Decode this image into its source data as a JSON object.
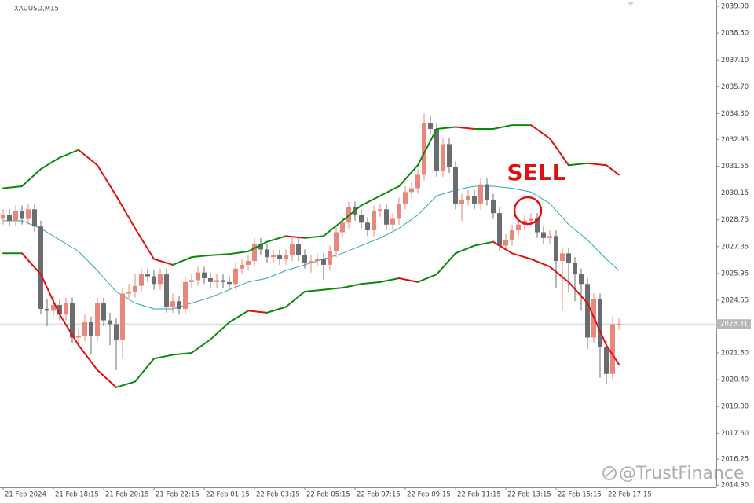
{
  "chart_data": {
    "type": "candlestick",
    "title": "XAUUSD,M15",
    "categories": [
      "21 Feb 2024",
      null,
      null,
      null,
      null,
      null,
      null,
      null,
      "21 Feb 18:15",
      null,
      null,
      null,
      null,
      null,
      null,
      null,
      "21 Feb 20:15",
      null,
      null,
      null,
      null,
      null,
      null,
      null,
      "21 Feb 22:15",
      null,
      null,
      null,
      null,
      null,
      null,
      null,
      "22 Feb 01:15",
      null,
      null,
      null,
      null,
      null,
      null,
      null,
      "22 Feb 03:15",
      null,
      null,
      null,
      null,
      null,
      null,
      null,
      "22 Feb 05:15",
      null,
      null,
      null,
      null,
      null,
      null,
      null,
      "22 Feb 07:15",
      null,
      null,
      null,
      null,
      null,
      null,
      null,
      "22 Feb 09:15",
      null,
      null,
      null,
      null,
      null,
      null,
      null,
      "22 Feb 11:15",
      null,
      null,
      null,
      null,
      null,
      null,
      null,
      "22 Feb 13:15",
      null,
      null,
      null,
      null,
      null,
      null,
      null,
      "22 Feb 15:15",
      null,
      null,
      null,
      null,
      null,
      null,
      null,
      "22 Feb 17:15",
      null,
      null
    ],
    "open": [
      2028.8,
      2029.0,
      2028.7,
      2029.2,
      2028.8,
      2029.3,
      2028.4,
      2024.1,
      2024.0,
      2024.3,
      2023.8,
      2024.4,
      2022.6,
      2022.7,
      2023.4,
      2022.7,
      2024.4,
      2023.5,
      2023.3,
      2022.5,
      2024.9,
      2025.0,
      2025.3,
      2025.9,
      2025.8,
      2025.4,
      2025.9,
      2024.2,
      2024.5,
      2024.1,
      2025.5,
      2025.6,
      2026.0,
      2025.7,
      2025.5,
      2025.6,
      2025.5,
      2025.4,
      2026.2,
      2026.4,
      2026.6,
      2027.5,
      2027.2,
      2026.8,
      2026.9,
      2026.7,
      2026.9,
      2027.5,
      2026.9,
      2026.5,
      2026.6,
      2026.7,
      2026.4,
      2027.1,
      2028.1,
      2028.6,
      2029.4,
      2029.0,
      2028.6,
      2028.2,
      2029.2,
      2029.3,
      2028.5,
      2028.8,
      2029.6,
      2030.2,
      2030.4,
      2031.1,
      2033.8,
      2033.5,
      2031.3,
      2032.7,
      2031.5,
      2029.6,
      2029.8,
      2030.0,
      2029.6,
      2030.6,
      2029.8,
      2029.1,
      2027.4,
      2027.7,
      2028.2,
      2028.5,
      2028.7,
      2028.8,
      2028.1,
      2027.8,
      2027.9,
      2026.6,
      2027.0,
      2026.5,
      2025.9,
      2025.4,
      2022.6,
      2024.6,
      2022.1,
      2020.7,
      2023.3
    ],
    "high": [
      2029.3,
      2029.3,
      2029.5,
      2029.5,
      2029.6,
      2029.6,
      2028.7,
      2024.6,
      2024.8,
      2024.6,
      2024.7,
      2024.7,
      2023.1,
      2023.8,
      2023.7,
      2024.7,
      2024.7,
      2023.9,
      2023.6,
      2025.2,
      2025.4,
      2025.9,
      2026.2,
      2026.2,
      2026.1,
      2026.2,
      2026.2,
      2024.9,
      2024.8,
      2025.8,
      2025.9,
      2026.3,
      2026.3,
      2026.0,
      2025.9,
      2025.9,
      2025.8,
      2026.5,
      2026.7,
      2026.9,
      2027.8,
      2027.8,
      2027.5,
      2027.2,
      2027.2,
      2027.2,
      2027.8,
      2027.8,
      2027.2,
      2026.9,
      2027.0,
      2027.0,
      2027.4,
      2028.4,
      2028.9,
      2029.7,
      2029.7,
      2029.3,
      2028.9,
      2029.5,
      2029.6,
      2029.6,
      2029.1,
      2029.9,
      2030.5,
      2030.7,
      2031.4,
      2034.3,
      2034.2,
      2033.8,
      2033.0,
      2033.0,
      2031.8,
      2030.1,
      2030.3,
      2030.3,
      2030.9,
      2030.9,
      2030.1,
      2029.4,
      2028.0,
      2028.5,
      2028.8,
      2029.0,
      2029.1,
      2029.1,
      2028.4,
      2028.2,
      2028.2,
      2027.3,
      2027.3,
      2026.8,
      2026.2,
      2025.7,
      2024.9,
      2024.9,
      2022.4,
      2023.7,
      2023.6
    ],
    "low": [
      2028.5,
      2028.4,
      2028.4,
      2028.5,
      2028.5,
      2028.1,
      2023.8,
      2023.2,
      2023.7,
      2023.5,
      2023.5,
      2022.3,
      2022.2,
      2022.4,
      2021.7,
      2022.4,
      2023.2,
      2022.2,
      2020.9,
      2021.5,
      2024.6,
      2024.7,
      2025.0,
      2025.5,
      2025.1,
      2025.1,
      2023.9,
      2023.9,
      2023.8,
      2023.8,
      2025.2,
      2025.3,
      2025.4,
      2025.2,
      2025.2,
      2025.2,
      2025.1,
      2025.1,
      2025.9,
      2026.1,
      2026.3,
      2026.9,
      2026.5,
      2026.5,
      2026.4,
      2026.4,
      2026.6,
      2026.6,
      2026.2,
      2026.0,
      2026.3,
      2025.6,
      2026.1,
      2026.8,
      2027.8,
      2028.3,
      2028.7,
      2028.3,
      2027.9,
      2027.9,
      2028.9,
      2028.2,
      2028.2,
      2028.5,
      2029.3,
      2029.9,
      2030.1,
      2030.8,
      2033.2,
      2031.0,
      2031.0,
      2031.2,
      2029.3,
      2028.7,
      2029.5,
      2029.3,
      2029.3,
      2029.5,
      2028.8,
      2027.1,
      2027.1,
      2027.4,
      2027.9,
      2028.2,
      2028.4,
      2027.8,
      2027.5,
      2027.5,
      2025.2,
      2024.0,
      2025.0,
      2024.5,
      2024.0,
      2022.0,
      2022.3,
      2020.5,
      2020.2,
      2020.4,
      2023.0
    ],
    "close": [
      2029.0,
      2028.7,
      2029.2,
      2028.8,
      2029.3,
      2028.4,
      2024.1,
      2024.0,
      2024.3,
      2023.8,
      2024.4,
      2022.6,
      2022.7,
      2023.4,
      2022.7,
      2024.4,
      2023.5,
      2023.3,
      2022.5,
      2024.9,
      2025.0,
      2025.3,
      2025.9,
      2025.8,
      2025.4,
      2025.9,
      2024.2,
      2024.5,
      2024.1,
      2025.5,
      2025.6,
      2026.0,
      2025.7,
      2025.5,
      2025.6,
      2025.5,
      2025.4,
      2026.2,
      2026.4,
      2026.6,
      2027.5,
      2027.2,
      2026.8,
      2026.9,
      2026.7,
      2026.9,
      2027.5,
      2026.9,
      2026.5,
      2026.6,
      2026.7,
      2026.4,
      2027.1,
      2028.1,
      2028.6,
      2029.4,
      2029.0,
      2028.6,
      2028.2,
      2029.2,
      2029.3,
      2028.5,
      2028.8,
      2029.6,
      2030.2,
      2030.4,
      2031.1,
      2033.8,
      2033.5,
      2031.3,
      2032.7,
      2031.5,
      2029.6,
      2029.8,
      2030.0,
      2029.6,
      2030.6,
      2029.8,
      2029.1,
      2027.4,
      2027.7,
      2028.2,
      2028.5,
      2028.7,
      2028.8,
      2028.1,
      2027.8,
      2027.9,
      2026.6,
      2027.0,
      2026.5,
      2025.9,
      2025.4,
      2022.6,
      2024.6,
      2022.1,
      2020.7,
      2023.3,
      2023.31
    ],
    "up_color": "#e8877c",
    "down_color": "#6c6c70",
    "bands": {
      "x": [
        0,
        3,
        6,
        9,
        12,
        15,
        18,
        21,
        24,
        27,
        30,
        33,
        36,
        39,
        42,
        45,
        48,
        51,
        54,
        57,
        60,
        63,
        66,
        69,
        72,
        75,
        78,
        81,
        84,
        87,
        90,
        93,
        96,
        98
      ],
      "upper": [
        2030.4,
        2030.5,
        2031.4,
        2032.0,
        2032.4,
        2031.6,
        2030.0,
        2028.3,
        2026.7,
        2026.4,
        2026.8,
        2026.9,
        2026.96,
        2027.1,
        2027.6,
        2027.9,
        2027.8,
        2027.9,
        2028.7,
        2029.5,
        2030.0,
        2030.5,
        2031.6,
        2033.5,
        2033.6,
        2033.5,
        2033.5,
        2033.7,
        2033.7,
        2033.0,
        2031.6,
        2031.7,
        2031.6,
        2031.1
      ],
      "middle": [
        2028.7,
        2028.7,
        2028.3,
        2027.7,
        2027.1,
        2026.1,
        2025.0,
        2024.4,
        2024.1,
        2024.1,
        2024.4,
        2024.7,
        2025.1,
        2025.5,
        2025.7,
        2026.1,
        2026.4,
        2026.7,
        2027.0,
        2027.4,
        2027.8,
        2028.3,
        2029.0,
        2030.0,
        2030.3,
        2030.5,
        2030.5,
        2030.4,
        2030.2,
        2029.6,
        2028.5,
        2027.7,
        2026.7,
        2026.1
      ],
      "lower": [
        2027.0,
        2027.0,
        2025.9,
        2023.8,
        2022.2,
        2020.9,
        2020.0,
        2020.3,
        2021.5,
        2021.7,
        2021.8,
        2022.5,
        2023.4,
        2024.0,
        2023.9,
        2024.2,
        2025.0,
        2025.1,
        2025.2,
        2025.4,
        2025.5,
        2025.7,
        2025.5,
        2025.9,
        2027.0,
        2027.4,
        2027.6,
        2027.0,
        2026.7,
        2026.3,
        2025.5,
        2024.4,
        2022.2,
        2021.2
      ],
      "up_color": "#0a8a0a",
      "down_color": "#e01010",
      "middle_color": "#2aa7b5"
    },
    "ylim": [
      2014.78,
      2040.23
    ],
    "yticks": [
      {
        "value": 2039.9,
        "label": "2039.90"
      },
      {
        "value": 2038.5,
        "label": "2038.50"
      },
      {
        "value": 2037.1,
        "label": "2037.10"
      },
      {
        "value": 2035.7,
        "label": "2035.70"
      },
      {
        "value": 2034.3,
        "label": "2034.30"
      },
      2032.95,
      2031.55,
      2030.15,
      2028.75,
      2027.35,
      2025.95,
      2024.55,
      {
        "value": 2021.8,
        "label": "2021.80"
      },
      {
        "value": 2020.4,
        "label": "2020.40"
      },
      {
        "value": 2019.0,
        "label": "2019.00"
      },
      {
        "value": 2017.6,
        "label": "2017.60"
      },
      2016.25,
      {
        "value": 2014.9,
        "label": "2014.90"
      }
    ],
    "current_price": 2023.31,
    "annotation": "SELL",
    "watermark": "@TrustFinance"
  }
}
